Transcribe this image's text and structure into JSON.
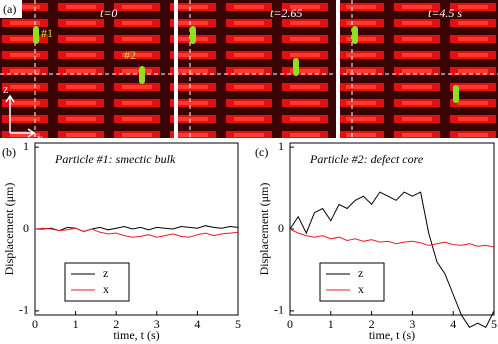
{
  "image_panel": {
    "label": "(a)",
    "frames": [
      "t=0",
      "t=2.65",
      "t=4.5 s"
    ],
    "particle_labels": [
      "#1",
      "#2"
    ],
    "axes": [
      "z",
      "x"
    ]
  },
  "chart_data": [
    {
      "type": "line",
      "panel_label": "(b)",
      "annotation": "Particle #1: smectic bulk",
      "xlabel": "time, t (s)",
      "ylabel": "Displacement (μm)",
      "x": [
        0,
        0.2,
        0.4,
        0.6,
        0.8,
        1,
        1.2,
        1.4,
        1.6,
        1.8,
        2,
        2.2,
        2.4,
        2.6,
        2.8,
        3,
        3.2,
        3.4,
        3.6,
        3.8,
        4,
        4.2,
        4.4,
        4.6,
        4.8,
        5
      ],
      "series": [
        {
          "name": "z",
          "color": "#000000",
          "values": [
            0,
            0,
            0.01,
            -0.02,
            0.02,
            0.01,
            -0.03,
            0,
            0.02,
            -0.01,
            0.01,
            0.03,
            0,
            0.02,
            -0.01,
            0.02,
            0.01,
            0,
            0.03,
            0.02,
            0.01,
            0.04,
            0.02,
            0.01,
            0.03,
            0.02
          ]
        },
        {
          "name": "x",
          "color": "#e8202a",
          "values": [
            0,
            0.01,
            0,
            -0.02,
            -0.01,
            0.01,
            -0.03,
            0,
            -0.04,
            -0.06,
            -0.05,
            -0.08,
            -0.1,
            -0.09,
            -0.07,
            -0.1,
            -0.08,
            -0.06,
            -0.09,
            -0.1,
            -0.07,
            -0.05,
            -0.08,
            -0.06,
            -0.05,
            -0.04
          ]
        }
      ],
      "xlim": [
        0,
        5
      ],
      "xticks": [
        0,
        1,
        2,
        3,
        4,
        5
      ],
      "ylim": [
        -1.05,
        1.05
      ],
      "yticks": [
        -1,
        0,
        1
      ],
      "legend": "lower left"
    },
    {
      "type": "line",
      "panel_label": "(c)",
      "annotation": "Particle #2: defect core",
      "xlabel": "time, t (s)",
      "ylabel": "Displacement (μm)",
      "x": [
        0,
        0.2,
        0.4,
        0.6,
        0.8,
        1,
        1.2,
        1.4,
        1.6,
        1.8,
        2,
        2.2,
        2.4,
        2.6,
        2.8,
        3,
        3.2,
        3.4,
        3.6,
        3.8,
        4,
        4.2,
        4.4,
        4.6,
        4.8,
        5
      ],
      "series": [
        {
          "name": "z",
          "color": "#000000",
          "values": [
            0,
            0.15,
            -0.05,
            0.2,
            0.25,
            0.1,
            0.3,
            0.25,
            0.35,
            0.4,
            0.3,
            0.45,
            0.4,
            0.35,
            0.45,
            0.4,
            0.45,
            -0.05,
            -0.4,
            -0.55,
            -0.8,
            -1.05,
            -1.2,
            -1.15,
            -1.2,
            -1.0
          ]
        },
        {
          "name": "x",
          "color": "#e8202a",
          "values": [
            0,
            -0.05,
            -0.08,
            -0.1,
            -0.08,
            -0.12,
            -0.1,
            -0.14,
            -0.12,
            -0.15,
            -0.13,
            -0.16,
            -0.15,
            -0.18,
            -0.16,
            -0.15,
            -0.17,
            -0.2,
            -0.18,
            -0.16,
            -0.19,
            -0.2,
            -0.18,
            -0.21,
            -0.2,
            -0.22
          ]
        }
      ],
      "xlim": [
        0,
        5
      ],
      "xticks": [
        0,
        1,
        2,
        3,
        4,
        5
      ],
      "ylim": [
        -1.05,
        1.05
      ],
      "yticks": [
        -1,
        0,
        1
      ],
      "legend": "lower left"
    }
  ]
}
